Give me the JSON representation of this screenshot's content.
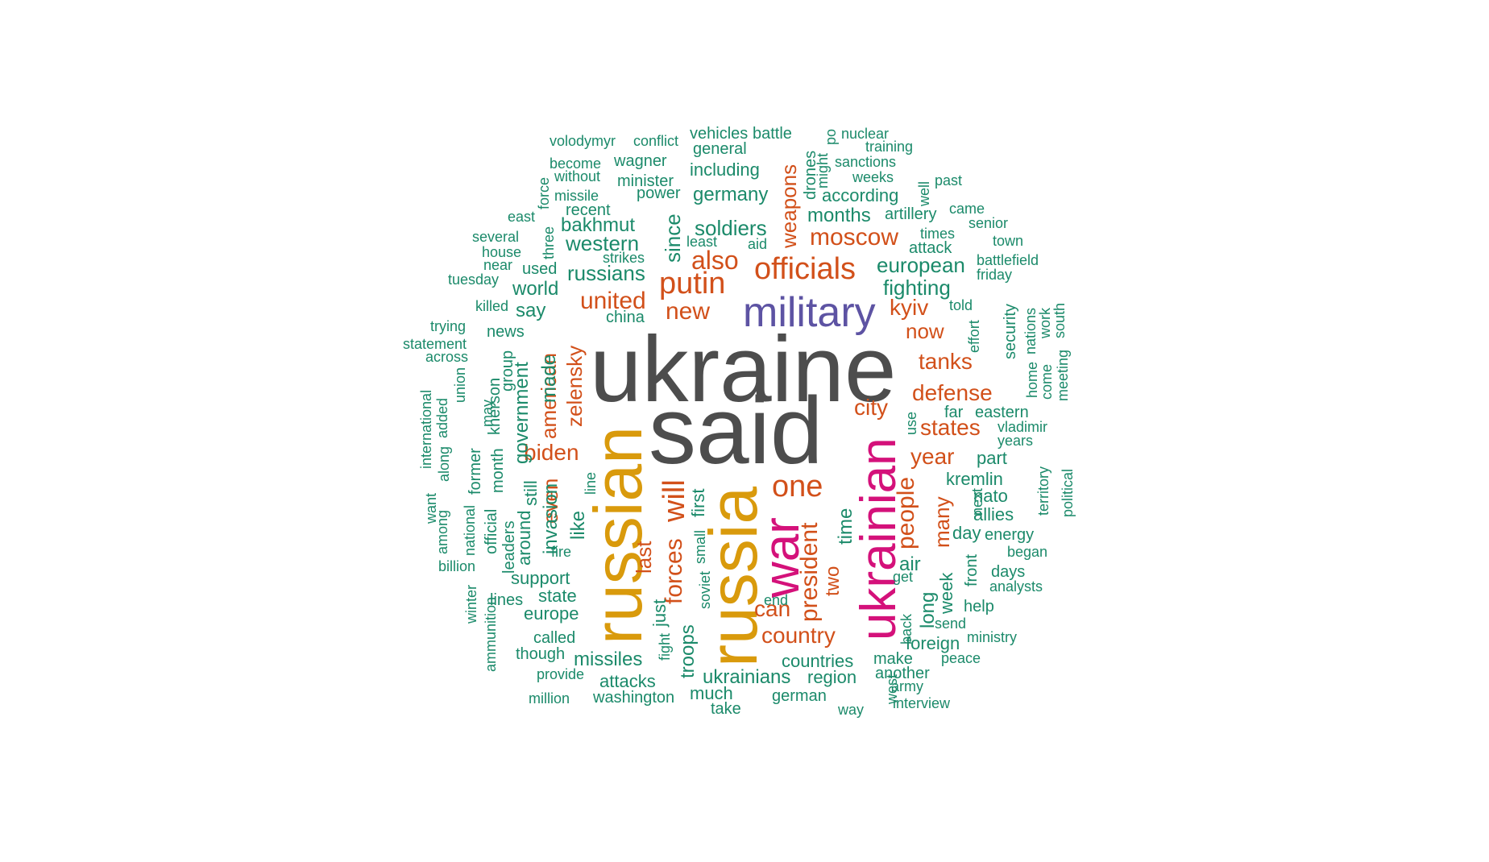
{
  "word_cloud": {
    "colors": {
      "gray": "#4d4d4d",
      "gold": "#d99a0c",
      "magenta": "#d4117a",
      "purple": "#5d53a3",
      "orange": "#d2501a",
      "green": "#1b8a6a"
    },
    "words": [
      {
        "text": "ukraine",
        "color": "gray",
        "weight": 10
      },
      {
        "text": "said",
        "color": "gray",
        "weight": 10
      },
      {
        "text": "russian",
        "color": "gold",
        "weight": 8
      },
      {
        "text": "russia",
        "color": "gold",
        "weight": 8
      },
      {
        "text": "ukrainian",
        "color": "magenta",
        "weight": 7
      },
      {
        "text": "war",
        "color": "magenta",
        "weight": 7
      },
      {
        "text": "military",
        "color": "purple",
        "weight": 6
      },
      {
        "text": "officials",
        "color": "orange",
        "weight": 4
      },
      {
        "text": "putin",
        "color": "orange",
        "weight": 4
      },
      {
        "text": "one",
        "color": "orange",
        "weight": 4
      },
      {
        "text": "will",
        "color": "orange",
        "weight": 4
      },
      {
        "text": "moscow",
        "color": "orange",
        "weight": 3
      },
      {
        "text": "also",
        "color": "orange",
        "weight": 3
      },
      {
        "text": "united",
        "color": "orange",
        "weight": 3
      },
      {
        "text": "new",
        "color": "orange",
        "weight": 3
      },
      {
        "text": "kyiv",
        "color": "orange",
        "weight": 3
      },
      {
        "text": "now",
        "color": "orange",
        "weight": 3
      },
      {
        "text": "tanks",
        "color": "orange",
        "weight": 3
      },
      {
        "text": "defense",
        "color": "orange",
        "weight": 3
      },
      {
        "text": "city",
        "color": "orange",
        "weight": 3
      },
      {
        "text": "states",
        "color": "orange",
        "weight": 3
      },
      {
        "text": "year",
        "color": "orange",
        "weight": 3
      },
      {
        "text": "biden",
        "color": "orange",
        "weight": 3
      },
      {
        "text": "people",
        "color": "orange",
        "weight": 3
      },
      {
        "text": "president",
        "color": "orange",
        "weight": 3
      },
      {
        "text": "forces",
        "color": "orange",
        "weight": 3
      },
      {
        "text": "can",
        "color": "orange",
        "weight": 3
      },
      {
        "text": "country",
        "color": "orange",
        "weight": 3
      },
      {
        "text": "weapons",
        "color": "orange",
        "weight": 3
      },
      {
        "text": "american",
        "color": "orange",
        "weight": 3
      },
      {
        "text": "zelensky",
        "color": "orange",
        "weight": 3
      },
      {
        "text": "even",
        "color": "orange",
        "weight": 3
      },
      {
        "text": "last",
        "color": "orange",
        "weight": 3
      },
      {
        "text": "two",
        "color": "orange",
        "weight": 3
      },
      {
        "text": "many",
        "color": "orange",
        "weight": 3
      },
      {
        "text": "volodymyr",
        "color": "green",
        "weight": 1
      },
      {
        "text": "conflict",
        "color": "green",
        "weight": 1
      },
      {
        "text": "vehicles",
        "color": "green",
        "weight": 1
      },
      {
        "text": "battle",
        "color": "green",
        "weight": 1
      },
      {
        "text": "po",
        "color": "green",
        "weight": 1
      },
      {
        "text": "nuclear",
        "color": "green",
        "weight": 1
      },
      {
        "text": "general",
        "color": "green",
        "weight": 1
      },
      {
        "text": "training",
        "color": "green",
        "weight": 1
      },
      {
        "text": "become",
        "color": "green",
        "weight": 1
      },
      {
        "text": "wagner",
        "color": "green",
        "weight": 1
      },
      {
        "text": "drones",
        "color": "green",
        "weight": 1
      },
      {
        "text": "might",
        "color": "green",
        "weight": 1
      },
      {
        "text": "sanctions",
        "color": "green",
        "weight": 1
      },
      {
        "text": "without",
        "color": "green",
        "weight": 1
      },
      {
        "text": "minister",
        "color": "green",
        "weight": 1
      },
      {
        "text": "including",
        "color": "green",
        "weight": 2
      },
      {
        "text": "weeks",
        "color": "green",
        "weight": 1
      },
      {
        "text": "well",
        "color": "green",
        "weight": 1
      },
      {
        "text": "past",
        "color": "green",
        "weight": 1
      },
      {
        "text": "force",
        "color": "green",
        "weight": 1
      },
      {
        "text": "missile",
        "color": "green",
        "weight": 1
      },
      {
        "text": "power",
        "color": "green",
        "weight": 1
      },
      {
        "text": "germany",
        "color": "green",
        "weight": 2
      },
      {
        "text": "according",
        "color": "green",
        "weight": 2
      },
      {
        "text": "recent",
        "color": "green",
        "weight": 1
      },
      {
        "text": "east",
        "color": "green",
        "weight": 1
      },
      {
        "text": "months",
        "color": "green",
        "weight": 2
      },
      {
        "text": "artillery",
        "color": "green",
        "weight": 1
      },
      {
        "text": "came",
        "color": "green",
        "weight": 1
      },
      {
        "text": "three",
        "color": "green",
        "weight": 1
      },
      {
        "text": "bakhmut",
        "color": "green",
        "weight": 2
      },
      {
        "text": "since",
        "color": "green",
        "weight": 2
      },
      {
        "text": "soldiers",
        "color": "green",
        "weight": 2
      },
      {
        "text": "senior",
        "color": "green",
        "weight": 1
      },
      {
        "text": "several",
        "color": "green",
        "weight": 1
      },
      {
        "text": "times",
        "color": "green",
        "weight": 1
      },
      {
        "text": "western",
        "color": "green",
        "weight": 2
      },
      {
        "text": "least",
        "color": "green",
        "weight": 1
      },
      {
        "text": "aid",
        "color": "green",
        "weight": 1
      },
      {
        "text": "town",
        "color": "green",
        "weight": 1
      },
      {
        "text": "house",
        "color": "green",
        "weight": 1
      },
      {
        "text": "attack",
        "color": "green",
        "weight": 1
      },
      {
        "text": "strikes",
        "color": "green",
        "weight": 1
      },
      {
        "text": "near",
        "color": "green",
        "weight": 1
      },
      {
        "text": "european",
        "color": "green",
        "weight": 2
      },
      {
        "text": "battlefield",
        "color": "green",
        "weight": 1
      },
      {
        "text": "used",
        "color": "green",
        "weight": 1
      },
      {
        "text": "russians",
        "color": "green",
        "weight": 2
      },
      {
        "text": "friday",
        "color": "green",
        "weight": 1
      },
      {
        "text": "tuesday",
        "color": "green",
        "weight": 1
      },
      {
        "text": "world",
        "color": "green",
        "weight": 2
      },
      {
        "text": "fighting",
        "color": "green",
        "weight": 2
      },
      {
        "text": "killed",
        "color": "green",
        "weight": 1
      },
      {
        "text": "say",
        "color": "green",
        "weight": 2
      },
      {
        "text": "security",
        "color": "green",
        "weight": 1
      },
      {
        "text": "told",
        "color": "green",
        "weight": 1
      },
      {
        "text": "nations",
        "color": "green",
        "weight": 1
      },
      {
        "text": "work",
        "color": "green",
        "weight": 1
      },
      {
        "text": "south",
        "color": "green",
        "weight": 1
      },
      {
        "text": "trying",
        "color": "green",
        "weight": 1
      },
      {
        "text": "china",
        "color": "green",
        "weight": 1
      },
      {
        "text": "effort",
        "color": "green",
        "weight": 1
      },
      {
        "text": "news",
        "color": "green",
        "weight": 1
      },
      {
        "text": "statement",
        "color": "green",
        "weight": 1
      },
      {
        "text": "home",
        "color": "green",
        "weight": 1
      },
      {
        "text": "come",
        "color": "green",
        "weight": 1
      },
      {
        "text": "meeting",
        "color": "green",
        "weight": 1
      },
      {
        "text": "across",
        "color": "green",
        "weight": 1
      },
      {
        "text": "made",
        "color": "green",
        "weight": 2
      },
      {
        "text": "group",
        "color": "green",
        "weight": 1
      },
      {
        "text": "kherson",
        "color": "green",
        "weight": 1
      },
      {
        "text": "international",
        "color": "green",
        "weight": 1
      },
      {
        "text": "added",
        "color": "green",
        "weight": 1
      },
      {
        "text": "union",
        "color": "green",
        "weight": 1
      },
      {
        "text": "may",
        "color": "green",
        "weight": 1
      },
      {
        "text": "government",
        "color": "green",
        "weight": 2
      },
      {
        "text": "use",
        "color": "green",
        "weight": 1
      },
      {
        "text": "far",
        "color": "green",
        "weight": 1
      },
      {
        "text": "eastern",
        "color": "green",
        "weight": 1
      },
      {
        "text": "vladimir",
        "color": "green",
        "weight": 1
      },
      {
        "text": "years",
        "color": "green",
        "weight": 1
      },
      {
        "text": "along",
        "color": "green",
        "weight": 1
      },
      {
        "text": "month",
        "color": "green",
        "weight": 1
      },
      {
        "text": "former",
        "color": "green",
        "weight": 1
      },
      {
        "text": "part",
        "color": "green",
        "weight": 2
      },
      {
        "text": "political",
        "color": "green",
        "weight": 1
      },
      {
        "text": "territory",
        "color": "green",
        "weight": 1
      },
      {
        "text": "kremlin",
        "color": "green",
        "weight": 2
      },
      {
        "text": "still",
        "color": "green",
        "weight": 2
      },
      {
        "text": "want",
        "color": "green",
        "weight": 1
      },
      {
        "text": "line",
        "color": "green",
        "weight": 1
      },
      {
        "text": "first",
        "color": "green",
        "weight": 2
      },
      {
        "text": "nato",
        "color": "green",
        "weight": 2
      },
      {
        "text": "next",
        "color": "green",
        "weight": 1
      },
      {
        "text": "among",
        "color": "green",
        "weight": 1
      },
      {
        "text": "invasion",
        "color": "green",
        "weight": 2
      },
      {
        "text": "allies",
        "color": "green",
        "weight": 2
      },
      {
        "text": "official",
        "color": "green",
        "weight": 1
      },
      {
        "text": "around",
        "color": "green",
        "weight": 2
      },
      {
        "text": "like",
        "color": "green",
        "weight": 2
      },
      {
        "text": "time",
        "color": "green",
        "weight": 2
      },
      {
        "text": "national",
        "color": "green",
        "weight": 1
      },
      {
        "text": "day",
        "color": "green",
        "weight": 2
      },
      {
        "text": "energy",
        "color": "green",
        "weight": 1
      },
      {
        "text": "leaders",
        "color": "green",
        "weight": 1
      },
      {
        "text": "small",
        "color": "green",
        "weight": 1
      },
      {
        "text": "fire",
        "color": "green",
        "weight": 1
      },
      {
        "text": "began",
        "color": "green",
        "weight": 1
      },
      {
        "text": "billion",
        "color": "green",
        "weight": 1
      },
      {
        "text": "air",
        "color": "green",
        "weight": 2
      },
      {
        "text": "front",
        "color": "green",
        "weight": 1
      },
      {
        "text": "days",
        "color": "green",
        "weight": 1
      },
      {
        "text": "support",
        "color": "green",
        "weight": 2
      },
      {
        "text": "get",
        "color": "green",
        "weight": 1
      },
      {
        "text": "soviet",
        "color": "green",
        "weight": 1
      },
      {
        "text": "analysts",
        "color": "green",
        "weight": 1
      },
      {
        "text": "winter",
        "color": "green",
        "weight": 1
      },
      {
        "text": "state",
        "color": "green",
        "weight": 2
      },
      {
        "text": "just",
        "color": "green",
        "weight": 2
      },
      {
        "text": "week",
        "color": "green",
        "weight": 2
      },
      {
        "text": "lines",
        "color": "green",
        "weight": 1
      },
      {
        "text": "end",
        "color": "green",
        "weight": 1
      },
      {
        "text": "long",
        "color": "green",
        "weight": 2
      },
      {
        "text": "help",
        "color": "green",
        "weight": 1
      },
      {
        "text": "ammunition",
        "color": "green",
        "weight": 1
      },
      {
        "text": "europe",
        "color": "green",
        "weight": 2
      },
      {
        "text": "troops",
        "color": "green",
        "weight": 2
      },
      {
        "text": "back",
        "color": "green",
        "weight": 1
      },
      {
        "text": "send",
        "color": "green",
        "weight": 1
      },
      {
        "text": "called",
        "color": "green",
        "weight": 1
      },
      {
        "text": "foreign",
        "color": "green",
        "weight": 2
      },
      {
        "text": "ministry",
        "color": "green",
        "weight": 1
      },
      {
        "text": "fight",
        "color": "green",
        "weight": 1
      },
      {
        "text": "though",
        "color": "green",
        "weight": 1
      },
      {
        "text": "missiles",
        "color": "green",
        "weight": 2
      },
      {
        "text": "countries",
        "color": "green",
        "weight": 2
      },
      {
        "text": "make",
        "color": "green",
        "weight": 1
      },
      {
        "text": "peace",
        "color": "green",
        "weight": 1
      },
      {
        "text": "provide",
        "color": "green",
        "weight": 1
      },
      {
        "text": "ukrainians",
        "color": "green",
        "weight": 2
      },
      {
        "text": "region",
        "color": "green",
        "weight": 2
      },
      {
        "text": "another",
        "color": "green",
        "weight": 1
      },
      {
        "text": "attacks",
        "color": "green",
        "weight": 1
      },
      {
        "text": "army",
        "color": "green",
        "weight": 1
      },
      {
        "text": "much",
        "color": "green",
        "weight": 2
      },
      {
        "text": "million",
        "color": "green",
        "weight": 1
      },
      {
        "text": "washington",
        "color": "green",
        "weight": 1
      },
      {
        "text": "german",
        "color": "green",
        "weight": 1
      },
      {
        "text": "west",
        "color": "green",
        "weight": 1
      },
      {
        "text": "interview",
        "color": "green",
        "weight": 1
      },
      {
        "text": "take",
        "color": "green",
        "weight": 1
      },
      {
        "text": "way",
        "color": "green",
        "weight": 1
      }
    ]
  }
}
